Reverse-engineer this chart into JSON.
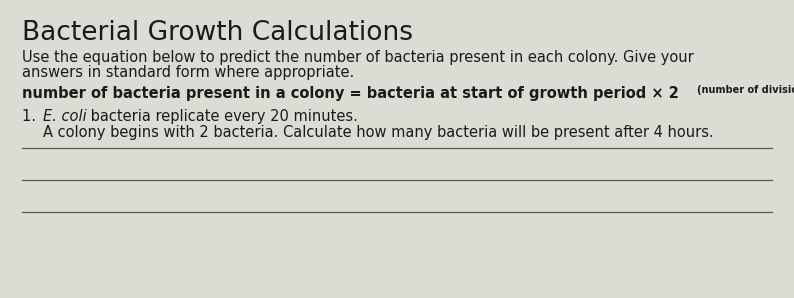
{
  "title": "Bacterial Growth Calculations",
  "subtitle_line1": "Use the equation below to predict the number of bacteria present in each colony. Give your",
  "subtitle_line2": "answers in standard form where appropriate.",
  "equation_bold": "number of bacteria present in a colony = bacteria at start of growth period × 2",
  "equation_superscript": "(number of divisions)",
  "item1_number": "1.",
  "item1_italic": "E. coli",
  "item1_rest": " bacteria replicate every 20 minutes.",
  "item2_line": "A colony begins with 2 bacteria. Calculate how many bacteria will be present after 4 hours.",
  "background_color": "#dcdcd4",
  "text_color": "#1a1a1a",
  "title_fontsize": 19,
  "body_fontsize": 10.5,
  "equation_fontsize": 10.5,
  "item_fontsize": 10.5,
  "superscript_fontsize": 7
}
